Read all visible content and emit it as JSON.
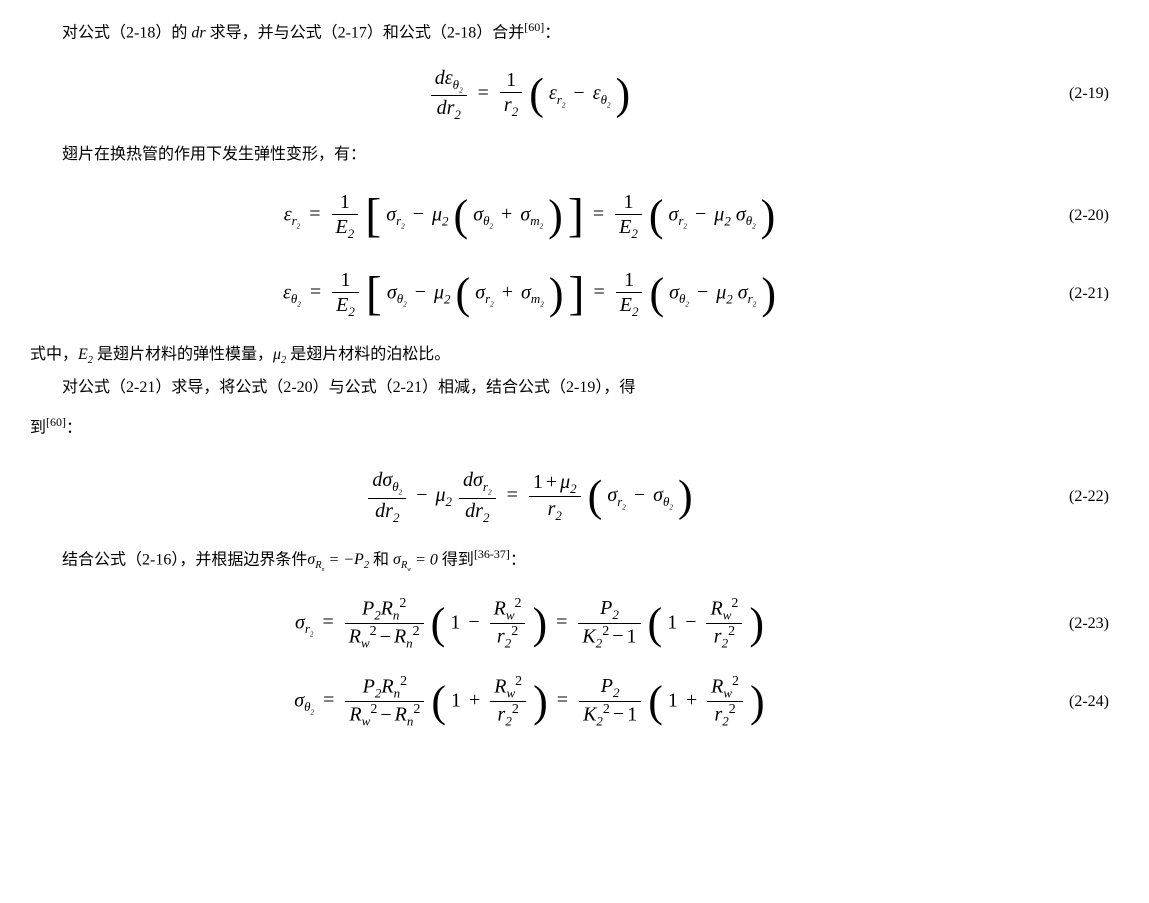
{
  "p1_pre": "对公式（2-18）的 ",
  "p1_dr": "dr",
  "p1_post": " 求导，并与公式（2-17）和公式（2-18）合并",
  "p1_ref": "[60]",
  "p1_colon": "：",
  "eq19_num": "(2-19)",
  "p2": "翅片在换热管的作用下发生弹性变形，有：",
  "eq20_num": "(2-20)",
  "eq21_num": "(2-21)",
  "p3_pre": "式中，",
  "p3_E2": "E",
  "p3_E2_sub": "2",
  "p3_mid1": " 是翅片材料的弹性模量，",
  "p3_mu2": "μ",
  "p3_mu2_sub": "2",
  "p3_post": " 是翅片材料的泊松比。",
  "p4_a": "对公式（2-21）求导，将公式（2-20）与公式（2-21）相减，结合公式（2-19），得",
  "p4_b": "到",
  "p4_ref": "[60]",
  "p4_colon": "：",
  "eq22_num": "(2-22)",
  "p5_pre": "结合公式（2-16），并根据边界条件",
  "p5_sig": "σ",
  "p5_Rn": "R",
  "p5_Rn_sub": "n",
  "p5_eq1": " = −",
  "p5_P2": "P",
  "p5_P2_sub": "2",
  "p5_and": " 和 ",
  "p5_Rw": "R",
  "p5_Rw_sub": "w",
  "p5_eq2": " = 0",
  "p5_post": " 得到",
  "p5_ref": "[36-37]",
  "p5_colon": "：",
  "eq23_num": "(2-23)",
  "eq24_num": "(2-24)",
  "sym": {
    "d": "d",
    "eps": "ε",
    "theta": "θ",
    "r": "r",
    "two": "2",
    "one": "1",
    "sigma": "σ",
    "mu": "μ",
    "E": "E",
    "m": "m",
    "plus": "+",
    "minus": "−",
    "eq": "=",
    "P": "P",
    "R": "R",
    "n": "n",
    "w": "w",
    "K": "K"
  }
}
